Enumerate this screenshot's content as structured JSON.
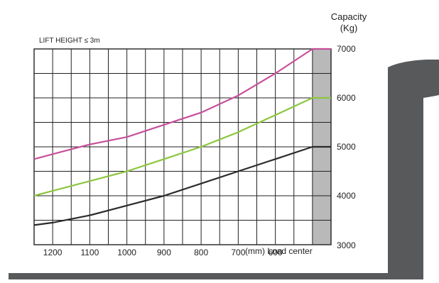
{
  "chart_data": {
    "type": "line",
    "title": "LIFT HEIGHT ≤ 3m",
    "ylabel_line1": "Capacity",
    "ylabel_line2": "(Kg)",
    "xlabel": "(mm) Load center",
    "x_ticks": [
      "1200",
      "1100",
      "1000",
      "900",
      "800",
      "700",
      "600"
    ],
    "y_ticks": [
      "3000",
      "4000",
      "5000",
      "6000",
      "7000"
    ],
    "xlim": [
      1250,
      450
    ],
    "ylim": [
      3000,
      7000
    ],
    "grid": true,
    "rated_zone": {
      "x_range": [
        500,
        450
      ],
      "color": "#b9b9b9"
    },
    "series": [
      {
        "color": "#c7509a",
        "x": [
          1250,
          1200,
          1100,
          1000,
          900,
          800,
          700,
          600,
          500,
          450
        ],
        "y": [
          4750,
          4850,
          5050,
          5200,
          5450,
          5700,
          6050,
          6500,
          7000,
          7000
        ]
      },
      {
        "color": "#8cc63f",
        "x": [
          1250,
          1200,
          1100,
          1000,
          900,
          800,
          700,
          600,
          500,
          450
        ],
        "y": [
          4000,
          4100,
          4300,
          4500,
          4750,
          5000,
          5300,
          5650,
          6000,
          6000
        ]
      },
      {
        "color": "#2b2b2b",
        "x": [
          1250,
          1200,
          1100,
          1000,
          900,
          800,
          700,
          600,
          500,
          450
        ],
        "y": [
          3400,
          3450,
          3600,
          3800,
          4000,
          4250,
          4500,
          4750,
          5000,
          5000
        ]
      }
    ]
  },
  "colors": {
    "fork": "#58595b",
    "grid": "#222222",
    "zone": "#b9b9b9"
  },
  "decoration": {
    "fork_icon": "forklift-fork-silhouette"
  }
}
